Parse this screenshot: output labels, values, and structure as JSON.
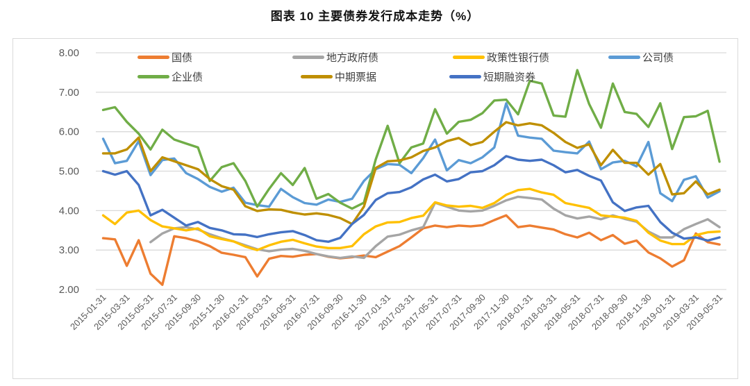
{
  "title": "图表 10 主要债券发行成本走势（%）",
  "chart_data": {
    "type": "line",
    "title": "图表 10 主要债券发行成本走势（%）",
    "ylabel": "",
    "xlabel": "",
    "ylim": [
      2,
      8
    ],
    "grid": "horizontal",
    "legend_position": "top",
    "y_ticks": [
      "8.00",
      "7.00",
      "6.00",
      "5.00",
      "4.00",
      "3.00",
      "2.00"
    ],
    "x": [
      "2015-01",
      "2015-02",
      "2015-03",
      "2015-04",
      "2015-05",
      "2015-06",
      "2015-07",
      "2015-08",
      "2015-09",
      "2015-10",
      "2015-11",
      "2015-12",
      "2016-01",
      "2016-02",
      "2016-03",
      "2016-04",
      "2016-05",
      "2016-06",
      "2016-07",
      "2016-08",
      "2016-09",
      "2016-10",
      "2016-11",
      "2016-12",
      "2017-01",
      "2017-02",
      "2017-03",
      "2017-04",
      "2017-05",
      "2017-06",
      "2017-07",
      "2017-08",
      "2017-09",
      "2017-10",
      "2017-11",
      "2017-12",
      "2018-01",
      "2018-02",
      "2018-03",
      "2018-04",
      "2018-05",
      "2018-06",
      "2018-07",
      "2018-08",
      "2018-09",
      "2018-10",
      "2018-11",
      "2018-12",
      "2019-01",
      "2019-02",
      "2019-03",
      "2019-04",
      "2019-05"
    ],
    "x_tick_labels": [
      "2015-01-31",
      "2015-03-31",
      "2015-05-31",
      "2015-07-31",
      "2015-09-30",
      "2015-11-30",
      "2016-01-31",
      "2016-03-31",
      "2016-05-31",
      "2016-07-31",
      "2016-09-30",
      "2016-11-30",
      "2017-01-31",
      "2017-03-31",
      "2017-05-31",
      "2017-07-31",
      "2017-09-30",
      "2017-11-30",
      "2018-01-31",
      "2018-03-31",
      "2018-05-31",
      "2018-07-31",
      "2018-09-30",
      "2018-11-30",
      "2019-01-31",
      "2019-03-31",
      "2019-05-31"
    ],
    "series": [
      {
        "id": "treasury",
        "name": "国债",
        "color": "#ED7D31",
        "values": [
          3.3,
          3.27,
          2.6,
          3.25,
          2.4,
          2.12,
          3.35,
          3.3,
          3.22,
          3.1,
          2.93,
          2.88,
          2.82,
          2.33,
          2.78,
          2.85,
          2.83,
          2.88,
          2.9,
          2.83,
          2.79,
          2.82,
          2.86,
          2.82,
          2.96,
          3.1,
          3.32,
          3.55,
          3.62,
          3.58,
          3.62,
          3.6,
          3.63,
          3.76,
          3.88,
          3.58,
          3.62,
          3.57,
          3.52,
          3.4,
          3.32,
          3.44,
          3.25,
          3.38,
          3.16,
          3.24,
          2.94,
          2.79,
          2.58,
          2.74,
          3.42,
          3.2,
          3.14
        ]
      },
      {
        "id": "local-gov",
        "name": "地方政府债",
        "color": "#A5A5A5",
        "values": [
          null,
          null,
          null,
          null,
          3.2,
          3.42,
          3.55,
          3.58,
          3.52,
          3.4,
          3.3,
          3.22,
          3.12,
          3.02,
          2.97,
          3.01,
          3.03,
          2.98,
          2.9,
          2.84,
          2.8,
          2.84,
          2.8,
          3.1,
          3.34,
          3.39,
          3.5,
          3.58,
          4.2,
          4.1,
          4.0,
          3.98,
          4.0,
          4.12,
          4.26,
          4.35,
          4.32,
          4.28,
          4.05,
          3.88,
          3.8,
          3.85,
          3.78,
          3.88,
          3.79,
          3.72,
          3.47,
          3.32,
          3.32,
          3.53,
          3.66,
          3.78,
          3.58
        ]
      },
      {
        "id": "policy-bank",
        "name": "政策性银行债",
        "color": "#FFC000",
        "values": [
          3.88,
          3.66,
          3.95,
          4.0,
          3.76,
          3.6,
          3.55,
          3.5,
          3.55,
          3.35,
          3.28,
          3.22,
          3.09,
          3.0,
          3.12,
          3.21,
          3.26,
          3.17,
          3.09,
          3.05,
          3.05,
          3.1,
          3.4,
          3.6,
          3.7,
          3.71,
          3.81,
          3.87,
          4.21,
          4.13,
          4.1,
          4.12,
          4.07,
          4.19,
          4.4,
          4.52,
          4.55,
          4.46,
          4.4,
          4.19,
          4.13,
          4.07,
          3.88,
          3.85,
          3.82,
          3.74,
          3.44,
          3.24,
          3.15,
          3.15,
          3.38,
          3.45,
          3.47
        ]
      },
      {
        "id": "corporate",
        "name": "公司债",
        "color": "#5B9BD5",
        "values": [
          5.82,
          5.2,
          5.26,
          5.76,
          4.9,
          5.28,
          5.32,
          4.95,
          4.8,
          4.6,
          4.48,
          4.58,
          4.2,
          4.14,
          4.1,
          4.55,
          4.34,
          4.19,
          4.15,
          4.28,
          4.22,
          4.3,
          4.75,
          5.05,
          5.18,
          5.16,
          4.95,
          5.33,
          5.8,
          5.02,
          5.28,
          5.2,
          5.35,
          5.6,
          6.72,
          5.9,
          5.85,
          5.82,
          5.52,
          5.48,
          5.45,
          5.75,
          5.05,
          5.22,
          5.26,
          5.12,
          5.74,
          4.44,
          4.24,
          4.78,
          4.87,
          4.33,
          4.49
        ]
      },
      {
        "id": "enterprise",
        "name": "企业债",
        "color": "#70AD47",
        "values": [
          6.55,
          6.62,
          6.25,
          5.95,
          5.55,
          6.05,
          5.8,
          5.7,
          5.6,
          4.75,
          5.1,
          5.2,
          4.75,
          4.1,
          4.55,
          4.95,
          4.65,
          5.08,
          4.3,
          4.42,
          4.2,
          4.05,
          4.2,
          5.3,
          6.15,
          5.2,
          5.6,
          5.7,
          6.57,
          5.95,
          6.25,
          6.3,
          6.47,
          6.79,
          6.81,
          6.44,
          7.29,
          7.22,
          6.41,
          6.38,
          7.56,
          6.7,
          6.1,
          7.22,
          6.5,
          6.45,
          6.12,
          6.72,
          5.56,
          6.37,
          6.39,
          6.53,
          5.24
        ]
      },
      {
        "id": "mtn",
        "name": "中期票据",
        "color": "#BF8F00",
        "values": [
          5.45,
          5.45,
          5.55,
          5.85,
          5.0,
          5.35,
          5.25,
          5.15,
          5.05,
          4.8,
          4.62,
          4.53,
          4.11,
          3.99,
          4.03,
          4.02,
          3.95,
          3.9,
          3.93,
          3.89,
          3.81,
          3.66,
          4.1,
          5.08,
          5.25,
          5.27,
          5.35,
          5.51,
          5.6,
          5.76,
          5.84,
          5.66,
          5.74,
          6.0,
          6.24,
          6.16,
          6.21,
          6.16,
          5.97,
          5.74,
          5.59,
          5.68,
          5.15,
          5.54,
          5.21,
          5.21,
          4.91,
          5.18,
          4.41,
          4.44,
          4.74,
          4.41,
          4.53
        ]
      },
      {
        "id": "scp",
        "name": "短期融资券",
        "color": "#4472C4",
        "values": [
          5.0,
          4.91,
          5.0,
          4.65,
          3.88,
          4.02,
          3.82,
          3.62,
          3.71,
          3.56,
          3.5,
          3.4,
          3.39,
          3.33,
          3.4,
          3.45,
          3.48,
          3.38,
          3.25,
          3.21,
          3.31,
          3.66,
          3.89,
          4.27,
          4.44,
          4.47,
          4.59,
          4.79,
          4.91,
          4.74,
          4.8,
          4.97,
          5.0,
          5.15,
          5.38,
          5.29,
          5.26,
          5.29,
          5.15,
          4.97,
          5.03,
          4.88,
          4.76,
          4.21,
          3.99,
          4.08,
          4.12,
          3.71,
          3.44,
          3.29,
          3.32,
          3.24,
          3.32
        ]
      }
    ]
  }
}
